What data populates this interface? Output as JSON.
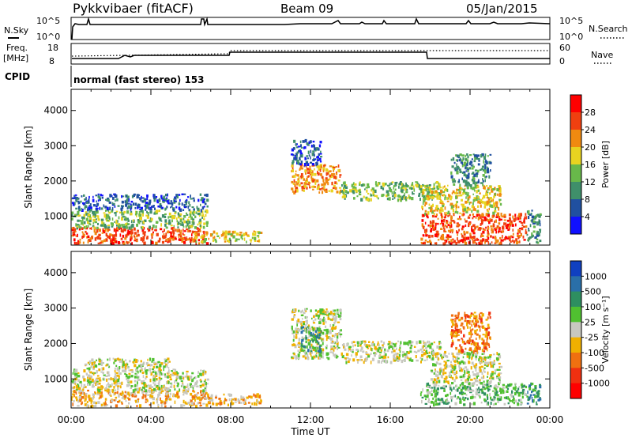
{
  "header": {
    "title": "Pykkvibaer (fitACF)",
    "beam": "Beam 09",
    "date": "05/Jan/2015"
  },
  "summary_panels": {
    "nsky_label": "N.Sky",
    "nsky_ticks": [
      "10^5",
      "10^0"
    ],
    "nsearch_label": "N.Search",
    "nsearch_ticks": [
      "10^5",
      "10^0"
    ],
    "freq_label": "Freq.",
    "freq_unit": "[MHz]",
    "freq_ticks": [
      "18",
      "8"
    ],
    "nave_label": "Nave",
    "nave_ticks": [
      "60",
      "0"
    ],
    "cpid_label": "CPID",
    "cpid_value": "normal (fast stereo) 153"
  },
  "x_axis": {
    "label": "Time UT",
    "ticks": [
      "00:00",
      "04:00",
      "08:00",
      "12:00",
      "16:00",
      "20:00",
      "00:00"
    ]
  },
  "chart_data": [
    {
      "type": "heatmap",
      "panel": "power",
      "ylabel": "Slant Range [km]",
      "y_ticks": [
        "1000",
        "2000",
        "3000",
        "4000"
      ],
      "ylim": [
        180,
        4600
      ],
      "xlim_hours": [
        0,
        24
      ],
      "colorbar": {
        "label": "Power [dB]",
        "ticks": [
          "4",
          "8",
          "12",
          "16",
          "20",
          "24",
          "28"
        ],
        "colors": [
          "#1010ff",
          "#2050a0",
          "#3f8f6a",
          "#68b84a",
          "#e8d320",
          "#f08a10",
          "#f04010",
          "#ff0000"
        ]
      },
      "regions": [
        {
          "t0": 0.0,
          "t1": 6.8,
          "r0": 250,
          "r1": 700,
          "level": 6
        },
        {
          "t0": 0.0,
          "t1": 6.8,
          "r0": 700,
          "r1": 1200,
          "level": 3
        },
        {
          "t0": 0.0,
          "t1": 6.8,
          "r0": 1200,
          "r1": 1650,
          "level": 1
        },
        {
          "t0": 6.0,
          "t1": 9.5,
          "r0": 300,
          "r1": 600,
          "level": 4
        },
        {
          "t0": 11.0,
          "t1": 13.5,
          "r0": 1700,
          "r1": 2500,
          "level": 5
        },
        {
          "t0": 11.0,
          "t1": 12.5,
          "r0": 2500,
          "r1": 3200,
          "level": 1
        },
        {
          "t0": 13.5,
          "t1": 18.5,
          "r0": 1500,
          "r1": 2000,
          "level": 3
        },
        {
          "t0": 17.5,
          "t1": 22.8,
          "r0": 250,
          "r1": 1100,
          "level": 6
        },
        {
          "t0": 17.5,
          "t1": 21.5,
          "r0": 1100,
          "r1": 1900,
          "level": 4
        },
        {
          "t0": 19.0,
          "t1": 21.0,
          "r0": 1900,
          "r1": 2800,
          "level": 2
        },
        {
          "t0": 22.8,
          "t1": 23.5,
          "r0": 250,
          "r1": 1200,
          "level": 2
        }
      ]
    },
    {
      "type": "heatmap",
      "panel": "velocity",
      "ylabel": "Slant Range [km]",
      "y_ticks": [
        "1000",
        "2000",
        "3000",
        "4000"
      ],
      "ylim": [
        180,
        4600
      ],
      "xlim_hours": [
        0,
        24
      ],
      "colorbar": {
        "label": "Velocity [m s⁻¹]",
        "ticks": [
          "1000",
          "500",
          "100",
          "25",
          "-25",
          "-100",
          "-500",
          "-1000"
        ],
        "colors": [
          "#1040c0",
          "#2a6fa8",
          "#2e8f60",
          "#50c030",
          "#c8c8c0",
          "#f0b000",
          "#f07010",
          "#f03010",
          "#ff0000"
        ]
      },
      "regions": [
        {
          "t0": 0.0,
          "t1": 6.8,
          "r0": 250,
          "r1": 700,
          "level": 5
        },
        {
          "t0": 0.0,
          "t1": 6.8,
          "r0": 700,
          "r1": 1300,
          "level": 4
        },
        {
          "t0": 0.5,
          "t1": 5.0,
          "r0": 1300,
          "r1": 1600,
          "level": 4
        },
        {
          "t0": 6.0,
          "t1": 9.5,
          "r0": 300,
          "r1": 600,
          "level": 5
        },
        {
          "t0": 11.0,
          "t1": 13.5,
          "r0": 1600,
          "r1": 3000,
          "level": 4
        },
        {
          "t0": 11.5,
          "t1": 12.5,
          "r0": 1800,
          "r1": 2500,
          "level": 2
        },
        {
          "t0": 13.5,
          "t1": 18.5,
          "r0": 1500,
          "r1": 2100,
          "level": 4
        },
        {
          "t0": 17.5,
          "t1": 22.8,
          "r0": 300,
          "r1": 900,
          "level": 3
        },
        {
          "t0": 18.0,
          "t1": 21.5,
          "r0": 900,
          "r1": 1800,
          "level": 4
        },
        {
          "t0": 19.0,
          "t1": 21.0,
          "r0": 1800,
          "r1": 2900,
          "level": 6
        },
        {
          "t0": 22.8,
          "t1": 23.5,
          "r0": 300,
          "r1": 900,
          "level": 2
        }
      ]
    }
  ],
  "colors": {
    "background": "#ffffff",
    "frame": "#000000",
    "grid_dash": "#000000"
  }
}
